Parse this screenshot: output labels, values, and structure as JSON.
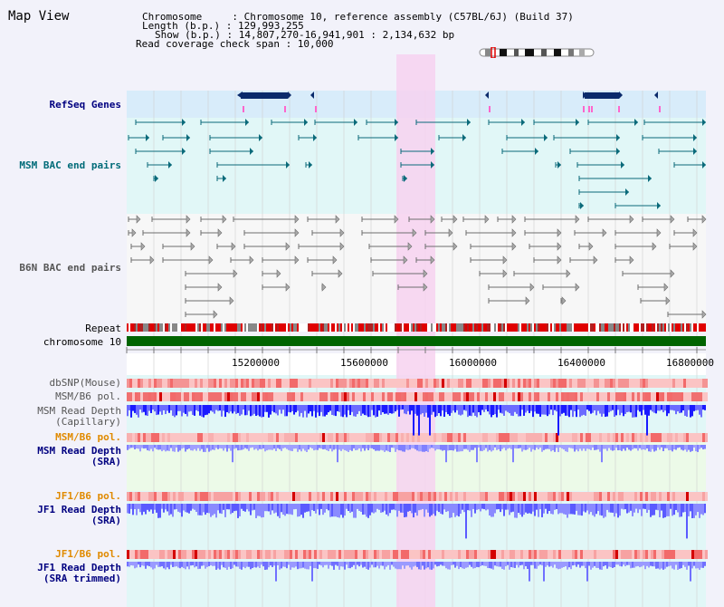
{
  "header": {
    "title": "Map View",
    "info_lines": [
      "Chromosome     : Chromosome 10, reference assembly (C57BL/6J) (Build 37)",
      "Length (b.p.) : 129,993,255",
      "Show (b.p.) : 14,807,270-16,941,901 : 2,134,632 bp",
      "Read coverage check span : 10,000"
    ]
  },
  "tracks": {
    "refseq": "RefSeq Genes",
    "msm_bac": "MSM BAC end pairs",
    "b6n_bac": "B6N BAC end pairs",
    "repeat": "Repeat",
    "chromosome": "chromosome 10"
  },
  "axis": {
    "ticks": [
      "15200000",
      "15600000",
      "16000000",
      "16400000",
      "16800000"
    ]
  },
  "lower_tracks": {
    "dbsnp": "dbSNP(Mouse)",
    "msm_b6_pol": "MSM/B6 pol.",
    "msm_read_depth_cap_1": "MSM Read Depth",
    "msm_read_depth_cap_2": "(Capillary)",
    "msm_b6_pol_2": "MSM/B6 pol.",
    "msm_read_depth_sra_1": "MSM Read Depth",
    "msm_read_depth_sra_2": "(SRA)",
    "jf1_b6_pol": "JF1/B6 pol.",
    "jf1_read_depth_sra_1": "JF1 Read Depth",
    "jf1_read_depth_sra_2": "(SRA)",
    "jf1_b6_pol_2": "JF1/B6 pol.",
    "jf1_read_depth_trim_1": "JF1 Read Depth",
    "jf1_read_depth_trim_2": "(SRA trimmed)"
  },
  "colors": {
    "highlight": "#f7d2f0",
    "navy_label": "#000080",
    "teal_label": "#006b78",
    "orange_label": "#e08a00",
    "depth_blue": "#1a1aff",
    "chromosome_green": "#006400"
  }
}
